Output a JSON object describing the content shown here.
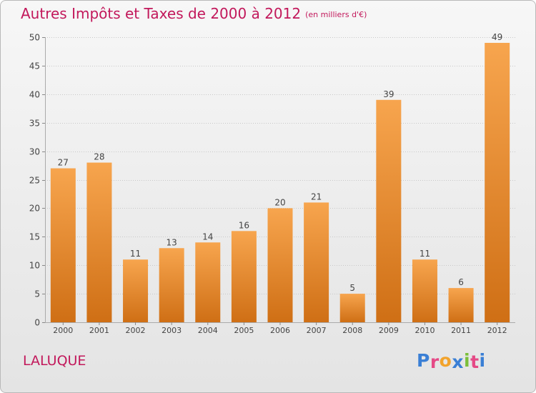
{
  "title": "Autres Impôts et Taxes de 2000 à 2012",
  "unit": "(en milliers d'€)",
  "commune": "LALUQUE",
  "logo": {
    "letters": [
      "P",
      "r",
      "o",
      "x",
      "i",
      "t",
      "i"
    ],
    "colors": [
      "#3a7fd5",
      "#e54a86",
      "#f2a32c",
      "#3a7fd5",
      "#7bbf3a",
      "#e54a86",
      "#3a7fd5"
    ]
  },
  "colors": {
    "bar_top": "#f7a54e",
    "bar_bottom": "#cf6f15",
    "title": "#c2185b"
  },
  "chart_data": {
    "type": "bar",
    "categories": [
      "2000",
      "2001",
      "2002",
      "2003",
      "2004",
      "2005",
      "2006",
      "2007",
      "2008",
      "2009",
      "2010",
      "2011",
      "2012"
    ],
    "values": [
      27,
      28,
      11,
      13,
      14,
      16,
      20,
      21,
      5,
      39,
      11,
      6,
      49
    ],
    "ylim": [
      0,
      50
    ],
    "yticks": [
      0,
      5,
      10,
      15,
      20,
      25,
      30,
      35,
      40,
      45,
      50
    ],
    "grid": "horizontal dotted",
    "data_labels": true
  }
}
